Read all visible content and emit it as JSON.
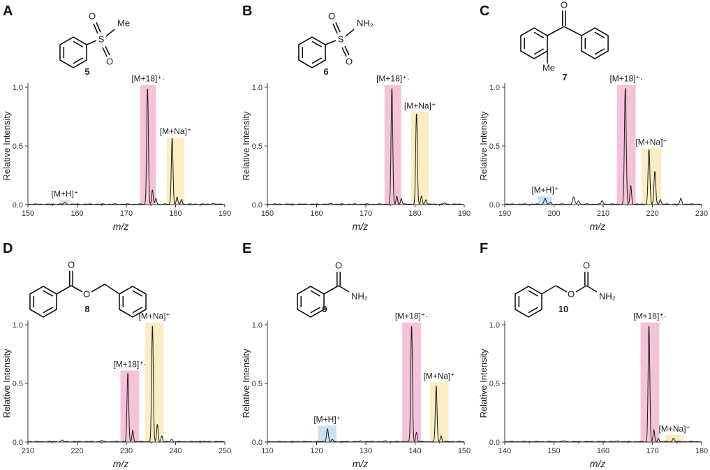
{
  "figure": {
    "background": "#ffffff",
    "colors": {
      "pink": "#f3b8d2",
      "yellow": "#faeab8",
      "blue": "#c6dcef",
      "trace": "#1a1a1a",
      "axis": "#333333"
    }
  },
  "chart_data": [
    {
      "panel": "A",
      "compound_number": "5",
      "structure_labels": [
        "S",
        "O",
        "O",
        "Me"
      ],
      "type": "line",
      "xlabel": "m/z",
      "ylabel": "Relative Intensity",
      "xlim": [
        150,
        190
      ],
      "ylim": [
        0,
        1.0
      ],
      "xticks": [
        150,
        160,
        170,
        180,
        190
      ],
      "yticks": [
        0.0,
        0.5,
        1.0
      ],
      "ytick_labels": [
        "0.0",
        "0.5",
        "1.0"
      ],
      "highlights": [
        {
          "label": "[M+H]⁺",
          "color": "blue",
          "x_range": [
            156.5,
            158.5
          ],
          "top": 0.04
        },
        {
          "label": "[M+18]⁺·",
          "color": "pink",
          "x_range": [
            172.8,
            176.0
          ],
          "top": 1.02
        },
        {
          "label": "[M+Na]⁺",
          "color": "yellow",
          "x_range": [
            178.2,
            181.8
          ],
          "top": 0.57
        }
      ],
      "peaks": [
        {
          "x": 157.5,
          "y": 0.012,
          "w": 0.35
        },
        {
          "x": 174.3,
          "y": 1.0,
          "w": 0.28
        },
        {
          "x": 175.3,
          "y": 0.12,
          "w": 0.25
        },
        {
          "x": 176.0,
          "y": 0.05,
          "w": 0.25
        },
        {
          "x": 179.3,
          "y": 0.57,
          "w": 0.28
        },
        {
          "x": 180.3,
          "y": 0.06,
          "w": 0.25
        },
        {
          "x": 181.2,
          "y": 0.04,
          "w": 0.25
        },
        {
          "x": 187.5,
          "y": 0.01,
          "w": 0.3
        }
      ]
    },
    {
      "panel": "B",
      "compound_number": "6",
      "structure_labels": [
        "S",
        "O",
        "O",
        "NH₂"
      ],
      "type": "line",
      "xlabel": "m/z",
      "ylabel": "Relative Intensity",
      "xlim": [
        150,
        190
      ],
      "ylim": [
        0,
        1.0
      ],
      "xticks": [
        150,
        160,
        170,
        180,
        190
      ],
      "yticks": [
        0.0,
        0.5,
        1.0
      ],
      "ytick_labels": [
        "0.0",
        "0.5",
        "1.0"
      ],
      "highlights": [
        {
          "label": "[M+18]⁺·",
          "color": "pink",
          "x_range": [
            173.8,
            177.2
          ],
          "top": 1.02
        },
        {
          "label": "[M+Na]⁺",
          "color": "yellow",
          "x_range": [
            179.2,
            182.8
          ],
          "top": 0.79
        }
      ],
      "peaks": [
        {
          "x": 175.3,
          "y": 1.0,
          "w": 0.28
        },
        {
          "x": 176.3,
          "y": 0.07,
          "w": 0.25
        },
        {
          "x": 177.2,
          "y": 0.05,
          "w": 0.25
        },
        {
          "x": 180.3,
          "y": 0.78,
          "w": 0.28
        },
        {
          "x": 181.3,
          "y": 0.07,
          "w": 0.25
        },
        {
          "x": 182.2,
          "y": 0.04,
          "w": 0.25
        },
        {
          "x": 163.0,
          "y": 0.008,
          "w": 0.3
        },
        {
          "x": 186.0,
          "y": 0.01,
          "w": 0.3
        }
      ]
    },
    {
      "panel": "C",
      "compound_number": "7",
      "structure_labels": [
        "O",
        "Me"
      ],
      "type": "line",
      "xlabel": "m/z",
      "ylabel": "Relative Intensity",
      "xlim": [
        190,
        230
      ],
      "ylim": [
        0,
        1.0
      ],
      "xticks": [
        190,
        200,
        210,
        220,
        230
      ],
      "yticks": [
        0.0,
        0.5,
        1.0
      ],
      "ytick_labels": [
        "0.0",
        "0.5",
        "1.0"
      ],
      "highlights": [
        {
          "label": "[M+H]⁺",
          "color": "blue",
          "x_range": [
            196.8,
            199.6
          ],
          "top": 0.07
        },
        {
          "label": "[M+18]⁺·",
          "color": "pink",
          "x_range": [
            212.8,
            216.6
          ],
          "top": 1.02
        },
        {
          "label": "[M+Na]⁺",
          "color": "yellow",
          "x_range": [
            217.8,
            221.8
          ],
          "top": 0.48
        }
      ],
      "peaks": [
        {
          "x": 198.2,
          "y": 0.05,
          "w": 0.35
        },
        {
          "x": 199.3,
          "y": 0.015,
          "w": 0.3
        },
        {
          "x": 204.0,
          "y": 0.06,
          "w": 0.35
        },
        {
          "x": 205.0,
          "y": 0.03,
          "w": 0.3
        },
        {
          "x": 209.8,
          "y": 0.03,
          "w": 0.3
        },
        {
          "x": 214.5,
          "y": 1.0,
          "w": 0.3
        },
        {
          "x": 215.6,
          "y": 0.16,
          "w": 0.27
        },
        {
          "x": 219.3,
          "y": 0.47,
          "w": 0.3
        },
        {
          "x": 220.5,
          "y": 0.28,
          "w": 0.3
        },
        {
          "x": 221.6,
          "y": 0.04,
          "w": 0.27
        },
        {
          "x": 225.8,
          "y": 0.05,
          "w": 0.3
        }
      ]
    },
    {
      "panel": "D",
      "compound_number": "8",
      "structure_labels": [
        "O",
        "O"
      ],
      "type": "line",
      "xlabel": "m/z",
      "ylabel": "Relative Intensity",
      "xlim": [
        210,
        250
      ],
      "ylim": [
        0,
        1.0
      ],
      "xticks": [
        210,
        220,
        230,
        240,
        250
      ],
      "yticks": [
        0.0,
        0.5,
        1.0
      ],
      "ytick_labels": [
        "0.0",
        "0.5",
        "1.0"
      ],
      "highlights": [
        {
          "label": "[M+18]⁺·",
          "color": "pink",
          "x_range": [
            228.8,
            232.6
          ],
          "top": 0.61
        },
        {
          "label": "[M+Na]⁺",
          "color": "yellow",
          "x_range": [
            233.8,
            237.6
          ],
          "top": 1.02
        }
      ],
      "peaks": [
        {
          "x": 230.3,
          "y": 0.59,
          "w": 0.28
        },
        {
          "x": 231.3,
          "y": 0.1,
          "w": 0.25
        },
        {
          "x": 235.3,
          "y": 1.0,
          "w": 0.28
        },
        {
          "x": 236.3,
          "y": 0.15,
          "w": 0.25
        },
        {
          "x": 237.2,
          "y": 0.05,
          "w": 0.25
        },
        {
          "x": 217.0,
          "y": 0.012,
          "w": 0.3
        },
        {
          "x": 225.0,
          "y": 0.01,
          "w": 0.3
        },
        {
          "x": 239.2,
          "y": 0.02,
          "w": 0.3
        },
        {
          "x": 245.0,
          "y": 0.008,
          "w": 0.3
        }
      ]
    },
    {
      "panel": "E",
      "compound_number": "9",
      "structure_labels": [
        "O",
        "NH₂"
      ],
      "type": "line",
      "xlabel": "m/z",
      "ylabel": "Relative Intensity",
      "xlim": [
        110,
        150
      ],
      "ylim": [
        0,
        1.0
      ],
      "xticks": [
        110,
        120,
        130,
        140,
        150
      ],
      "yticks": [
        0.0,
        0.5,
        1.0
      ],
      "ytick_labels": [
        "0.0",
        "0.5",
        "1.0"
      ],
      "highlights": [
        {
          "label": "[M+H]⁺",
          "color": "blue",
          "x_range": [
            120.3,
            124.0
          ],
          "top": 0.14
        },
        {
          "label": "[M+18]⁺·",
          "color": "pink",
          "x_range": [
            137.4,
            141.2
          ],
          "top": 1.02
        },
        {
          "label": "[M+Na]⁺",
          "color": "yellow",
          "x_range": [
            143.0,
            146.8
          ],
          "top": 0.51
        }
      ],
      "peaks": [
        {
          "x": 122.2,
          "y": 0.11,
          "w": 0.3
        },
        {
          "x": 123.2,
          "y": 0.02,
          "w": 0.25
        },
        {
          "x": 139.3,
          "y": 1.0,
          "w": 0.28
        },
        {
          "x": 140.3,
          "y": 0.08,
          "w": 0.25
        },
        {
          "x": 144.3,
          "y": 0.48,
          "w": 0.28
        },
        {
          "x": 145.3,
          "y": 0.05,
          "w": 0.25
        },
        {
          "x": 129.0,
          "y": 0.006,
          "w": 0.3
        },
        {
          "x": 134.0,
          "y": 0.006,
          "w": 0.3
        }
      ]
    },
    {
      "panel": "F",
      "compound_number": "10",
      "structure_labels": [
        "O",
        "O",
        "NH₂"
      ],
      "type": "line",
      "xlabel": "m/z",
      "ylabel": "Relative Intensity",
      "xlim": [
        140,
        180
      ],
      "ylim": [
        0,
        1.0
      ],
      "xticks": [
        140,
        150,
        160,
        170,
        180
      ],
      "yticks": [
        0.0,
        0.5,
        1.0
      ],
      "ytick_labels": [
        "0.0",
        "0.5",
        "1.0"
      ],
      "highlights": [
        {
          "label": "[M+18]⁺·",
          "color": "pink",
          "x_range": [
            167.6,
            171.4
          ],
          "top": 1.02
        },
        {
          "label": "[M+Na]⁺",
          "color": "yellow",
          "x_range": [
            172.6,
            176.4
          ],
          "top": 0.06
        }
      ],
      "peaks": [
        {
          "x": 169.3,
          "y": 1.0,
          "w": 0.28
        },
        {
          "x": 170.3,
          "y": 0.1,
          "w": 0.25
        },
        {
          "x": 171.2,
          "y": 0.03,
          "w": 0.25
        },
        {
          "x": 174.3,
          "y": 0.03,
          "w": 0.3
        },
        {
          "x": 152.0,
          "y": 0.008,
          "w": 0.3
        },
        {
          "x": 163.0,
          "y": 0.006,
          "w": 0.3
        }
      ]
    }
  ]
}
